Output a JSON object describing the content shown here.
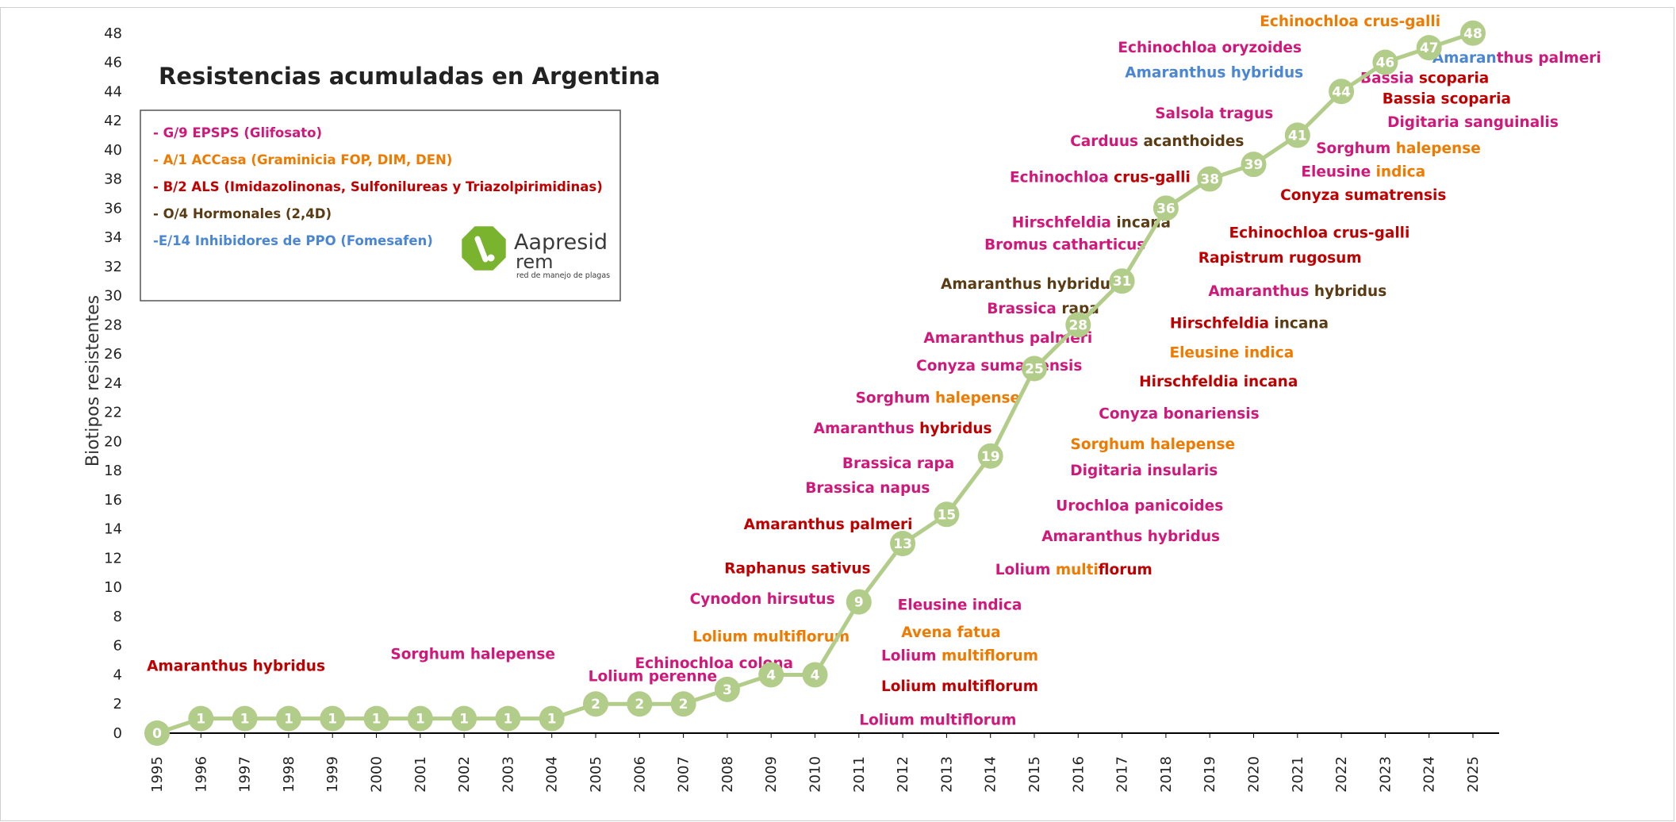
{
  "colors": {
    "glifosato": "#d0187b",
    "accasa": "#ef7a00",
    "als": "#c00000",
    "hormonales": "#5a3c14",
    "ppo": "#4a86d4",
    "line": "#b2cc8a"
  },
  "chart_data": {
    "type": "line",
    "title": "Resistencias acumuladas en Argentina",
    "xlabel": "",
    "ylabel": "Biotipos resistentes",
    "ylim": [
      0,
      48
    ],
    "ytick_step": 2,
    "grid": false,
    "legend_placement": "top-left",
    "categories": [
      "1995",
      "1996",
      "1997",
      "1998",
      "1999",
      "2000",
      "2001",
      "2002",
      "2003",
      "2004",
      "2005",
      "2006",
      "2007",
      "2008",
      "2009",
      "2010",
      "2011",
      "2012",
      "2013",
      "2014",
      "2015",
      "2016",
      "2017",
      "2018",
      "2019",
      "2020",
      "2021",
      "2022",
      "2023",
      "2024",
      "2025"
    ],
    "series": [
      {
        "values": [
          0,
          1,
          1,
          1,
          1,
          1,
          1,
          1,
          1,
          1,
          2,
          2,
          2,
          3,
          4,
          4,
          9,
          13,
          15,
          19,
          25,
          28,
          31,
          36,
          38,
          39,
          41,
          44,
          46,
          47,
          48
        ]
      }
    ],
    "legend": [
      {
        "text": "- G/9 EPSPS (Glifosato)",
        "color": "glifosato"
      },
      {
        "text": "- A/1 ACCasa (Graminicia FOP, DIM, DEN)",
        "color": "accasa"
      },
      {
        "text": "- B/2 ALS (Imidazolinonas, Sulfonilureas y Triazolpirimidinas)",
        "color": "als"
      },
      {
        "text": "- O/4 Hormonales (2,4D)",
        "color": "hormonales"
      },
      {
        "text": "-E/14 Inhibidores de PPO (Fomesafen)",
        "color": "ppo"
      }
    ],
    "annotations": [
      {
        "parts": [
          [
            "Amaranthus hybridus",
            "als"
          ]
        ],
        "x": 1996.8,
        "y": 4.6
      },
      {
        "parts": [
          [
            "Sorghum halepense",
            "glifosato"
          ]
        ],
        "x": 2002.2,
        "y": 5.4
      },
      {
        "parts": [
          [
            "Lolium perenne",
            "glifosato"
          ]
        ],
        "x": 2006.3,
        "y": 3.9
      },
      {
        "parts": [
          [
            "Echinochloa colona",
            "glifosato"
          ]
        ],
        "x": 2007.7,
        "y": 4.8
      },
      {
        "parts": [
          [
            "Lolium multiflorum",
            "accasa"
          ]
        ],
        "x": 2009.0,
        "y": 6.6
      },
      {
        "parts": [
          [
            "Cynodon hirsutus",
            "glifosato"
          ]
        ],
        "x": 2008.8,
        "y": 9.2
      },
      {
        "parts": [
          [
            "Raphanus sativus",
            "als"
          ]
        ],
        "x": 2009.6,
        "y": 11.3
      },
      {
        "parts": [
          [
            "Amaranthus palmeri",
            "als"
          ]
        ],
        "x": 2010.3,
        "y": 14.3
      },
      {
        "parts": [
          [
            "Brassica napus",
            "glifosato"
          ]
        ],
        "x": 2011.2,
        "y": 16.8
      },
      {
        "parts": [
          [
            "Brassica rapa",
            "glifosato"
          ]
        ],
        "x": 2011.9,
        "y": 18.5
      },
      {
        "parts": [
          [
            "Amaranthus ",
            "glifosato"
          ],
          [
            "hybridus",
            "als"
          ]
        ],
        "x": 2012.0,
        "y": 20.9
      },
      {
        "parts": [
          [
            "Sorghum ",
            "glifosato"
          ],
          [
            "halepense",
            "accasa"
          ]
        ],
        "x": 2012.8,
        "y": 23.0
      },
      {
        "parts": [
          [
            "Conyza sumatrensis",
            "glifosato"
          ]
        ],
        "x": 2014.2,
        "y": 25.2
      },
      {
        "parts": [
          [
            "Amaranthus palmeri",
            "glifosato"
          ]
        ],
        "x": 2014.4,
        "y": 27.1
      },
      {
        "parts": [
          [
            "Brassica ",
            "glifosato"
          ],
          [
            "rapa",
            "hormonales"
          ]
        ],
        "x": 2015.2,
        "y": 29.1
      },
      {
        "parts": [
          [
            "Amaranthus hybridus",
            "hormonales"
          ]
        ],
        "x": 2014.9,
        "y": 30.8
      },
      {
        "parts": [
          [
            "Bromus catharticus",
            "glifosato"
          ]
        ],
        "x": 2015.7,
        "y": 33.5
      },
      {
        "parts": [
          [
            "Hirschfeldia ",
            "glifosato"
          ],
          [
            "incana",
            "hormonales"
          ]
        ],
        "x": 2016.3,
        "y": 35.0
      },
      {
        "parts": [
          [
            "Echinochloa ",
            "glifosato"
          ],
          [
            "crus-galli",
            "als"
          ]
        ],
        "x": 2016.5,
        "y": 38.1
      },
      {
        "parts": [
          [
            "Carduus ",
            "glifosato"
          ],
          [
            "acanthoides",
            "hormonales"
          ]
        ],
        "x": 2017.8,
        "y": 40.6
      },
      {
        "parts": [
          [
            "Salsola tragus",
            "glifosato"
          ]
        ],
        "x": 2019.1,
        "y": 42.5
      },
      {
        "parts": [
          [
            "Amaranthus hybridus",
            "ppo"
          ]
        ],
        "x": 2019.1,
        "y": 45.3
      },
      {
        "parts": [
          [
            "Echinochloa oryzoides",
            "glifosato"
          ]
        ],
        "x": 2019.0,
        "y": 47.0
      },
      {
        "parts": [
          [
            "Echinochloa crus-galli",
            "accasa"
          ]
        ],
        "x": 2022.2,
        "y": 48.8
      },
      {
        "parts": [
          [
            "Amaran",
            "ppo"
          ],
          [
            "thus palmeri",
            "glifosato"
          ]
        ],
        "x": 2026.0,
        "y": 46.3
      },
      {
        "parts": [
          [
            "Bassia ",
            "glifosato"
          ],
          [
            "scoparia",
            "als"
          ]
        ],
        "x": 2023.9,
        "y": 44.9
      },
      {
        "parts": [
          [
            "Bassia scoparia",
            "als"
          ]
        ],
        "x": 2024.4,
        "y": 43.5
      },
      {
        "parts": [
          [
            "Digitaria sanguinalis",
            "glifosato"
          ]
        ],
        "x": 2025.0,
        "y": 41.9
      },
      {
        "parts": [
          [
            "Sorghum ",
            "glifosato"
          ],
          [
            "halepense",
            "accasa"
          ]
        ],
        "x": 2023.3,
        "y": 40.1
      },
      {
        "parts": [
          [
            "Eleusine ",
            "glifosato"
          ],
          [
            "indica",
            "accasa"
          ]
        ],
        "x": 2022.5,
        "y": 38.5
      },
      {
        "parts": [
          [
            "Conyza sumatrensis",
            "als"
          ]
        ],
        "x": 2022.5,
        "y": 36.9
      },
      {
        "parts": [
          [
            "Echinochloa crus-galli",
            "als"
          ]
        ],
        "x": 2021.5,
        "y": 34.3
      },
      {
        "parts": [
          [
            "Rapistrum rugosum",
            "als"
          ]
        ],
        "x": 2020.6,
        "y": 32.6
      },
      {
        "parts": [
          [
            "Amaranthus ",
            "glifosato"
          ],
          [
            "hybridus",
            "hormonales"
          ]
        ],
        "x": 2021.0,
        "y": 30.3
      },
      {
        "parts": [
          [
            "Hirschfeldia ",
            "als"
          ],
          [
            "incana",
            "hormonales"
          ]
        ],
        "x": 2019.9,
        "y": 28.1
      },
      {
        "parts": [
          [
            "Eleusine indica",
            "accasa"
          ]
        ],
        "x": 2019.5,
        "y": 26.1
      },
      {
        "parts": [
          [
            "Hirschfeldia incana",
            "als"
          ]
        ],
        "x": 2019.2,
        "y": 24.1
      },
      {
        "parts": [
          [
            "Conyza bonariensis",
            "glifosato"
          ]
        ],
        "x": 2018.3,
        "y": 21.9
      },
      {
        "parts": [
          [
            "Sorghum halepense",
            "accasa"
          ]
        ],
        "x": 2017.7,
        "y": 19.8
      },
      {
        "parts": [
          [
            "Digitaria insularis",
            "glifosato"
          ]
        ],
        "x": 2017.5,
        "y": 18.0
      },
      {
        "parts": [
          [
            "Urochloa panicoides",
            "glifosato"
          ]
        ],
        "x": 2017.4,
        "y": 15.6
      },
      {
        "parts": [
          [
            "Amaranthus hybridus",
            "glifosato"
          ]
        ],
        "x": 2017.2,
        "y": 13.5
      },
      {
        "parts": [
          [
            "Lolium ",
            "glifosato"
          ],
          [
            "multi",
            "accasa"
          ],
          [
            "florum",
            "als"
          ]
        ],
        "x": 2015.9,
        "y": 11.2
      },
      {
        "parts": [
          [
            "Eleusine indica",
            "glifosato"
          ]
        ],
        "x": 2013.3,
        "y": 8.8
      },
      {
        "parts": [
          [
            "Avena fatua",
            "accasa"
          ]
        ],
        "x": 2013.1,
        "y": 6.9
      },
      {
        "parts": [
          [
            "Lolium ",
            "glifosato"
          ],
          [
            "multiflorum",
            "accasa"
          ]
        ],
        "x": 2013.3,
        "y": 5.3
      },
      {
        "parts": [
          [
            "Lolium multiflorum",
            "als"
          ]
        ],
        "x": 2013.3,
        "y": 3.2
      },
      {
        "parts": [
          [
            "Lolium multiflorum",
            "glifosato"
          ]
        ],
        "x": 2012.8,
        "y": 0.9
      }
    ]
  },
  "logo": {
    "name": "Aapresid",
    "sub": "rem",
    "tagline": "red de manejo de plagas",
    "icon": "aapresid-leaf-logo-icon",
    "color": "#7ab32e"
  }
}
